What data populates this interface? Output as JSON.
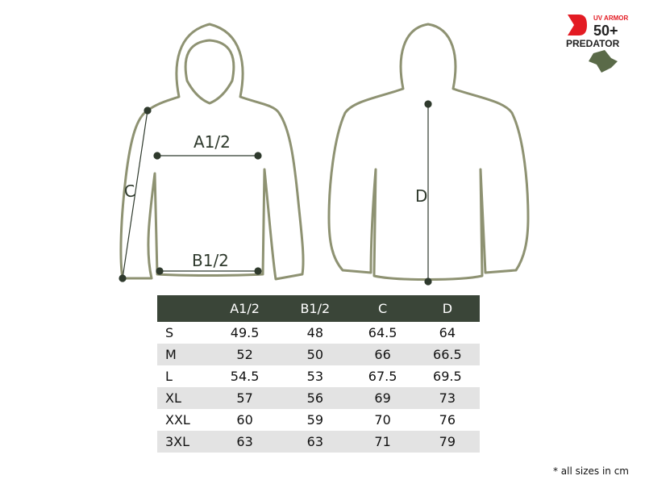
{
  "brand": {
    "logo_text": [
      "UV ARMOR",
      "50+",
      "PREDATOR"
    ],
    "accent": "#e31b23"
  },
  "labels": {
    "a": "A1/2",
    "b": "B1/2",
    "c": "C",
    "d": "D"
  },
  "table": {
    "headers": [
      "",
      "A1/2",
      "B1/2",
      "C",
      "D"
    ],
    "rows": [
      [
        "S",
        "49.5",
        "48",
        "64.5",
        "64"
      ],
      [
        "M",
        "52",
        "50",
        "66",
        "66.5"
      ],
      [
        "L",
        "54.5",
        "53",
        "67.5",
        "69.5"
      ],
      [
        "XL",
        "57",
        "56",
        "69",
        "73"
      ],
      [
        "XXL",
        "60",
        "59",
        "70",
        "76"
      ],
      [
        "3XL",
        "63",
        "63",
        "71",
        "79"
      ]
    ]
  },
  "note": "* all sizes in cm",
  "colors": {
    "outline": "#8e9272",
    "header": "#3a4538",
    "marker": "#2f3a2d"
  }
}
